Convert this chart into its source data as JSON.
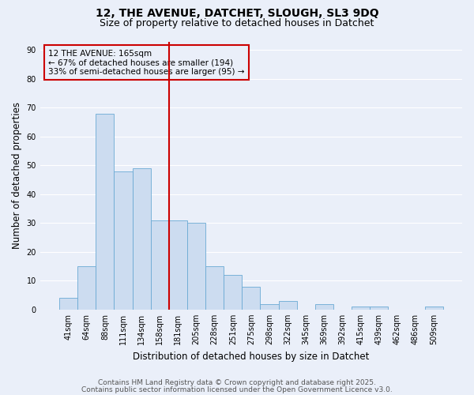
{
  "title_line1": "12, THE AVENUE, DATCHET, SLOUGH, SL3 9DQ",
  "title_line2": "Size of property relative to detached houses in Datchet",
  "xlabel": "Distribution of detached houses by size in Datchet",
  "ylabel": "Number of detached properties",
  "categories": [
    "41sqm",
    "64sqm",
    "88sqm",
    "111sqm",
    "134sqm",
    "158sqm",
    "181sqm",
    "205sqm",
    "228sqm",
    "251sqm",
    "275sqm",
    "298sqm",
    "322sqm",
    "345sqm",
    "369sqm",
    "392sqm",
    "415sqm",
    "439sqm",
    "462sqm",
    "486sqm",
    "509sqm"
  ],
  "values": [
    4,
    15,
    68,
    48,
    49,
    31,
    31,
    30,
    15,
    12,
    8,
    2,
    3,
    0,
    2,
    0,
    1,
    1,
    0,
    0,
    1
  ],
  "bar_color": "#ccdcf0",
  "bar_edge_color": "#6aaad4",
  "vline_x": 6.0,
  "vline_color": "#cc0000",
  "annotation_text": "12 THE AVENUE: 165sqm\n← 67% of detached houses are smaller (194)\n33% of semi-detached houses are larger (95) →",
  "annotation_box_color": "#cc0000",
  "ylim": [
    0,
    93
  ],
  "yticks": [
    0,
    10,
    20,
    30,
    40,
    50,
    60,
    70,
    80,
    90
  ],
  "background_color": "#eaeff9",
  "grid_color": "#ffffff",
  "footer_line1": "Contains HM Land Registry data © Crown copyright and database right 2025.",
  "footer_line2": "Contains public sector information licensed under the Open Government Licence v3.0.",
  "title_fontsize": 10,
  "subtitle_fontsize": 9,
  "axis_label_fontsize": 8.5,
  "tick_fontsize": 7,
  "annotation_fontsize": 7.5,
  "footer_fontsize": 6.5
}
